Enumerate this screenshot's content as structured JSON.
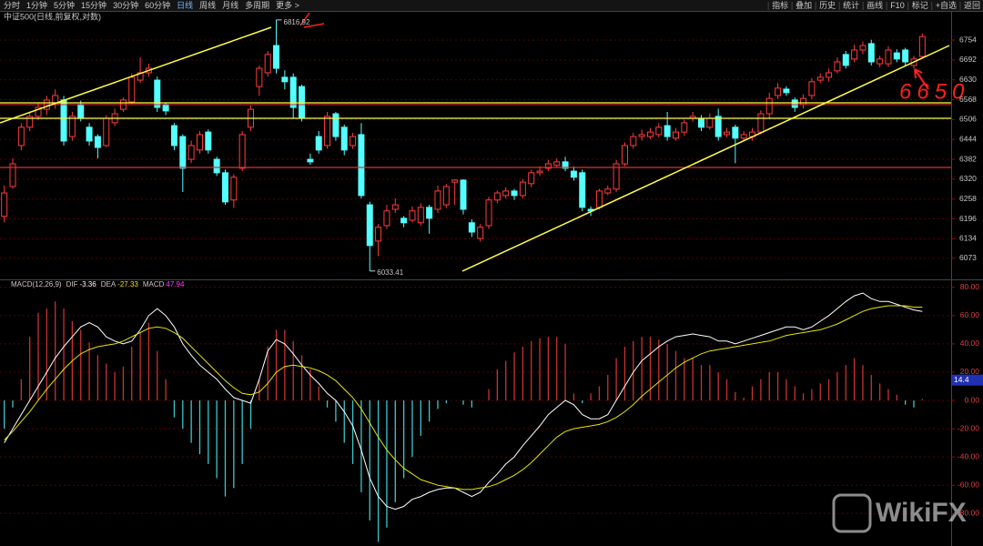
{
  "toolbar": {
    "periods": [
      "分时",
      "1分钟",
      "5分钟",
      "15分钟",
      "30分钟",
      "60分钟",
      "日线",
      "周线",
      "月线",
      "多周期",
      "更多 >"
    ],
    "tools": [
      "指标",
      "叠加",
      "历史",
      "统计",
      "画线",
      "F10",
      "标记",
      "+自选",
      "返回"
    ]
  },
  "handwritten": "6650",
  "watermark": "WikiFX",
  "chart_data": [
    {
      "type": "candlestick",
      "title": "中证500(日线,前复权,对数)",
      "up_color": "#ff3c3c",
      "down_color": "#54ffff",
      "ylim": [
        6013,
        6845
      ],
      "yticks": [
        6073,
        6134,
        6196,
        6258,
        6320,
        6382,
        6444,
        6506,
        6568,
        6630,
        6692,
        6754
      ],
      "grid": true,
      "max_label": 6816.92,
      "min_label": 6033.41,
      "ohlc": [
        [
          6204,
          6300,
          6185,
          6277
        ],
        [
          6297,
          6385,
          6290,
          6368
        ],
        [
          6425,
          6495,
          6410,
          6482
        ],
        [
          6482,
          6530,
          6470,
          6516
        ],
        [
          6516,
          6560,
          6505,
          6544
        ],
        [
          6538,
          6580,
          6520,
          6567
        ],
        [
          6553,
          6600,
          6540,
          6581
        ],
        [
          6567,
          6580,
          6425,
          6439
        ],
        [
          6453,
          6530,
          6440,
          6516
        ],
        [
          6553,
          6565,
          6500,
          6510
        ],
        [
          6482,
          6495,
          6425,
          6439
        ],
        [
          6453,
          6460,
          6385,
          6419
        ],
        [
          6425,
          6520,
          6420,
          6510
        ],
        [
          6496,
          6540,
          6485,
          6524
        ],
        [
          6538,
          6575,
          6530,
          6567
        ],
        [
          6561,
          6650,
          6555,
          6638
        ],
        [
          6629,
          6700,
          6620,
          6652
        ],
        [
          6652,
          6680,
          6640,
          6666
        ],
        [
          6629,
          6640,
          6530,
          6544
        ],
        [
          6553,
          6560,
          6520,
          6533
        ],
        [
          6487,
          6495,
          6410,
          6425
        ],
        [
          6453,
          6460,
          6280,
          6354
        ],
        [
          6382,
          6440,
          6370,
          6425
        ],
        [
          6411,
          6470,
          6400,
          6459
        ],
        [
          6467,
          6475,
          6400,
          6411
        ],
        [
          6382,
          6390,
          6330,
          6340
        ],
        [
          6340,
          6350,
          6240,
          6249
        ],
        [
          6255,
          6335,
          6230,
          6326
        ],
        [
          6354,
          6470,
          6345,
          6459
        ],
        [
          6482,
          6550,
          6470,
          6538
        ],
        [
          6609,
          6675,
          6580,
          6666
        ],
        [
          6652,
          6720,
          6640,
          6709
        ],
        [
          6737,
          6816.92,
          6650,
          6666
        ],
        [
          6638,
          6660,
          6600,
          6624
        ],
        [
          6638,
          6650,
          6510,
          6544
        ],
        [
          6609,
          6615,
          6500,
          6510
        ],
        [
          6382,
          6400,
          6365,
          6374
        ],
        [
          6453,
          6470,
          6400,
          6411
        ],
        [
          6425,
          6530,
          6415,
          6516
        ],
        [
          6524,
          6530,
          6440,
          6453
        ],
        [
          6482,
          6490,
          6395,
          6411
        ],
        [
          6425,
          6465,
          6415,
          6453
        ],
        [
          6459,
          6495,
          6260,
          6269
        ],
        [
          6240,
          6250,
          6033.41,
          6113
        ],
        [
          6127,
          6180,
          6080,
          6170
        ],
        [
          6175,
          6240,
          6165,
          6221
        ],
        [
          6226,
          6260,
          6215,
          6240
        ],
        [
          6198,
          6205,
          6170,
          6184
        ],
        [
          6192,
          6235,
          6185,
          6221
        ],
        [
          6184,
          6245,
          6175,
          6232
        ],
        [
          6232,
          6240,
          6150,
          6198
        ],
        [
          6226,
          6300,
          6215,
          6283
        ],
        [
          6240,
          6305,
          6230,
          6297
        ],
        [
          6311,
          6320,
          6240,
          6317
        ],
        [
          6317,
          6320,
          6210,
          6226
        ],
        [
          6184,
          6195,
          6140,
          6155
        ],
        [
          6135,
          6180,
          6125,
          6170
        ],
        [
          6175,
          6265,
          6165,
          6255
        ],
        [
          6255,
          6285,
          6245,
          6277
        ],
        [
          6269,
          6295,
          6260,
          6283
        ],
        [
          6283,
          6290,
          6255,
          6269
        ],
        [
          6269,
          6320,
          6260,
          6311
        ],
        [
          6306,
          6350,
          6295,
          6340
        ],
        [
          6340,
          6360,
          6330,
          6345
        ],
        [
          6354,
          6380,
          6345,
          6368
        ],
        [
          6363,
          6385,
          6355,
          6374
        ],
        [
          6374,
          6390,
          6345,
          6354
        ],
        [
          6345,
          6360,
          6315,
          6326
        ],
        [
          6340,
          6350,
          6220,
          6232
        ],
        [
          6226,
          6235,
          6205,
          6221
        ],
        [
          6232,
          6290,
          6225,
          6283
        ],
        [
          6277,
          6300,
          6270,
          6289
        ],
        [
          6289,
          6380,
          6280,
          6368
        ],
        [
          6368,
          6435,
          6360,
          6425
        ],
        [
          6425,
          6465,
          6415,
          6453
        ],
        [
          6453,
          6475,
          6440,
          6459
        ],
        [
          6453,
          6480,
          6445,
          6467
        ],
        [
          6459,
          6495,
          6450,
          6482
        ],
        [
          6487,
          6530,
          6440,
          6453
        ],
        [
          6448,
          6480,
          6440,
          6467
        ],
        [
          6467,
          6505,
          6455,
          6496
        ],
        [
          6510,
          6530,
          6500,
          6516
        ],
        [
          6510,
          6520,
          6470,
          6482
        ],
        [
          6482,
          6525,
          6475,
          6510
        ],
        [
          6516,
          6540,
          6440,
          6453
        ],
        [
          6459,
          6480,
          6450,
          6467
        ],
        [
          6482,
          6490,
          6370,
          6448
        ],
        [
          6448,
          6470,
          6440,
          6459
        ],
        [
          6453,
          6480,
          6440,
          6467
        ],
        [
          6467,
          6535,
          6460,
          6524
        ],
        [
          6524,
          6590,
          6510,
          6572
        ],
        [
          6581,
          6620,
          6570,
          6604
        ],
        [
          6601,
          6610,
          6580,
          6590
        ],
        [
          6567,
          6575,
          6530,
          6544
        ],
        [
          6553,
          6585,
          6540,
          6572
        ],
        [
          6581,
          6635,
          6570,
          6624
        ],
        [
          6629,
          6650,
          6620,
          6638
        ],
        [
          6638,
          6665,
          6625,
          6652
        ],
        [
          6658,
          6700,
          6650,
          6686
        ],
        [
          6709,
          6720,
          6665,
          6675
        ],
        [
          6695,
          6740,
          6685,
          6723
        ],
        [
          6723,
          6750,
          6710,
          6737
        ],
        [
          6743,
          6755,
          6675,
          6686
        ],
        [
          6680,
          6705,
          6670,
          6695
        ],
        [
          6680,
          6735,
          6670,
          6723
        ],
        [
          6714,
          6725,
          6685,
          6695
        ],
        [
          6723,
          6730,
          6675,
          6686
        ],
        [
          6675,
          6705,
          6665,
          6695
        ],
        [
          6703,
          6775,
          6695,
          6765
        ]
      ]
    },
    {
      "type": "macd",
      "title": "MACD(12,26,9)",
      "ylim": [
        -103,
        85
      ],
      "yticks": [
        {
          "value": 80,
          "label": "80.00"
        },
        {
          "value": 60,
          "label": "60.00"
        },
        {
          "value": 40,
          "label": "40.00"
        },
        {
          "value": 20,
          "label": "20.00"
        },
        {
          "value": 0,
          "label": "0.00"
        },
        {
          "value": -20,
          "label": "-20.00"
        },
        {
          "value": -40,
          "label": "-40.00"
        },
        {
          "value": -60,
          "label": "-60.00"
        },
        {
          "value": -80,
          "label": "-80.00"
        }
      ],
      "grid": true,
      "tag": 14.4,
      "series": [
        {
          "name": "DIF",
          "color": "#ffffff",
          "current": -3.36,
          "values": [
            -30,
            -20,
            -10,
            0,
            10,
            20,
            30,
            38,
            45,
            52,
            55,
            52,
            45,
            42,
            40,
            42,
            50,
            60,
            65,
            60,
            52,
            40,
            32,
            25,
            20,
            15,
            8,
            2,
            0,
            -2,
            15,
            35,
            43,
            40,
            33,
            25,
            18,
            12,
            5,
            0,
            -8,
            -18,
            -35,
            -55,
            -68,
            -75,
            -77,
            -75,
            -70,
            -68,
            -65,
            -63,
            -62,
            -62,
            -65,
            -68,
            -65,
            -58,
            -52,
            -45,
            -40,
            -32,
            -25,
            -18,
            -10,
            -5,
            0,
            -3,
            -10,
            -13,
            -13,
            -10,
            0,
            10,
            20,
            28,
            33,
            38,
            42,
            45,
            46,
            47,
            46,
            45,
            42,
            42,
            40,
            42,
            44,
            46,
            48,
            50,
            52,
            52,
            50,
            52,
            56,
            60,
            65,
            70,
            74,
            76,
            72,
            70,
            70,
            68,
            66,
            64,
            63
          ]
        },
        {
          "name": "DEA",
          "color": "#e6e600",
          "current": -27.33,
          "values": [
            -28,
            -22,
            -15,
            -8,
            0,
            8,
            15,
            22,
            28,
            33,
            36,
            38,
            39,
            40,
            42,
            45,
            48,
            51,
            52,
            51,
            48,
            44,
            38,
            32,
            26,
            20,
            14,
            9,
            5,
            4,
            6,
            12,
            20,
            24,
            25,
            24,
            23,
            21,
            18,
            14,
            8,
            2,
            -6,
            -16,
            -26,
            -35,
            -42,
            -48,
            -52,
            -56,
            -58,
            -60,
            -61,
            -62,
            -63,
            -63,
            -62,
            -61,
            -59,
            -56,
            -53,
            -49,
            -44,
            -38,
            -32,
            -26,
            -22,
            -20,
            -19,
            -18,
            -17,
            -15,
            -12,
            -8,
            -3,
            3,
            8,
            13,
            18,
            23,
            27,
            30,
            33,
            35,
            36,
            37,
            38,
            39,
            40,
            41,
            42,
            44,
            46,
            47,
            48,
            49,
            50,
            52,
            54,
            57,
            60,
            63,
            65,
            66,
            67,
            67,
            67,
            66,
            66
          ]
        }
      ],
      "bars": {
        "name": "MACD",
        "current": 47.94,
        "color": "#ff3cff",
        "up_color": "#c83232",
        "down_color": "#3cc8c8",
        "values": [
          -20,
          -5,
          15,
          45,
          62,
          65,
          70,
          65,
          56,
          50,
          41,
          32,
          26,
          20,
          24,
          38,
          48,
          55,
          35,
          15,
          -12,
          -20,
          -30,
          -38,
          -45,
          -55,
          -68,
          -62,
          -45,
          -20,
          15,
          38,
          50,
          50,
          42,
          32,
          22,
          10,
          -5,
          -15,
          -30,
          -45,
          -65,
          -85,
          -100,
          -90,
          -72,
          -55,
          -40,
          -25,
          -15,
          -6,
          -2,
          0,
          -3,
          -5,
          0,
          8,
          22,
          28,
          34,
          38,
          42,
          44,
          45,
          45,
          40,
          5,
          -2,
          5,
          10,
          18,
          30,
          38,
          42,
          45,
          45,
          43,
          40,
          35,
          30,
          30,
          25,
          25,
          20,
          15,
          6,
          2,
          10,
          15,
          20,
          20,
          15,
          10,
          5,
          8,
          12,
          15,
          20,
          25,
          30,
          25,
          18,
          12,
          8,
          4,
          -3,
          -5,
          1
        ]
      }
    }
  ]
}
